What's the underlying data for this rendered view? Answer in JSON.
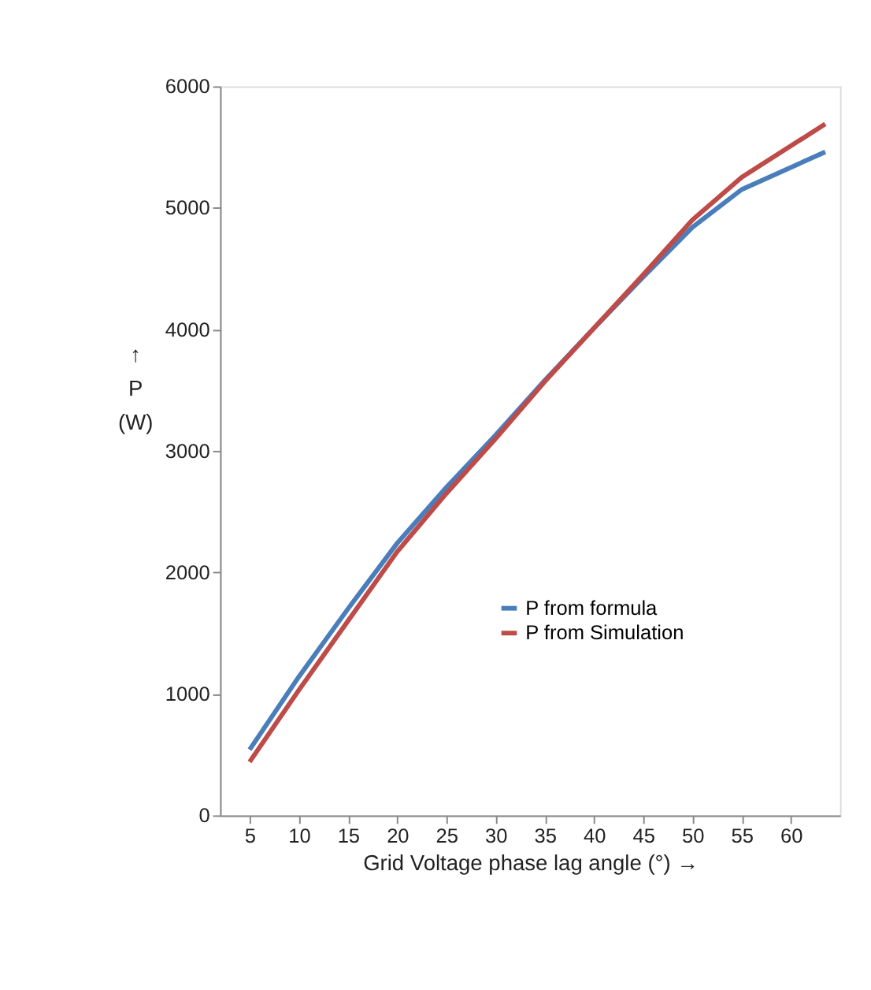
{
  "chart_data": {
    "type": "line",
    "xlabel": "Grid Voltage phase lag angle  (°)   →",
    "ylabel": "↑\nP\n(W)",
    "xlim": [
      2,
      65
    ],
    "xticks": [
      5,
      10,
      15,
      20,
      25,
      30,
      35,
      40,
      45,
      50,
      55,
      60
    ],
    "ylim": [
      0,
      6000
    ],
    "yticks": [
      0,
      1000,
      2000,
      3000,
      4000,
      5000,
      6000
    ],
    "x": [
      5,
      10,
      15,
      20,
      25,
      30,
      35,
      40,
      45,
      50,
      55,
      63.5
    ],
    "series": [
      {
        "name": "P from formula",
        "color": "#4a7ebb",
        "values": [
          540,
          1140,
          1700,
          2240,
          2700,
          3130,
          3580,
          4010,
          4430,
          4840,
          5150,
          5460
        ]
      },
      {
        "name": "P from Simulation",
        "color": "#be4b48",
        "values": [
          440,
          1030,
          1600,
          2170,
          2650,
          3100,
          3570,
          4010,
          4450,
          4900,
          5250,
          5690
        ]
      }
    ],
    "legend": "bottom right",
    "grid": false,
    "marker": "none",
    "line_style": "solid"
  }
}
